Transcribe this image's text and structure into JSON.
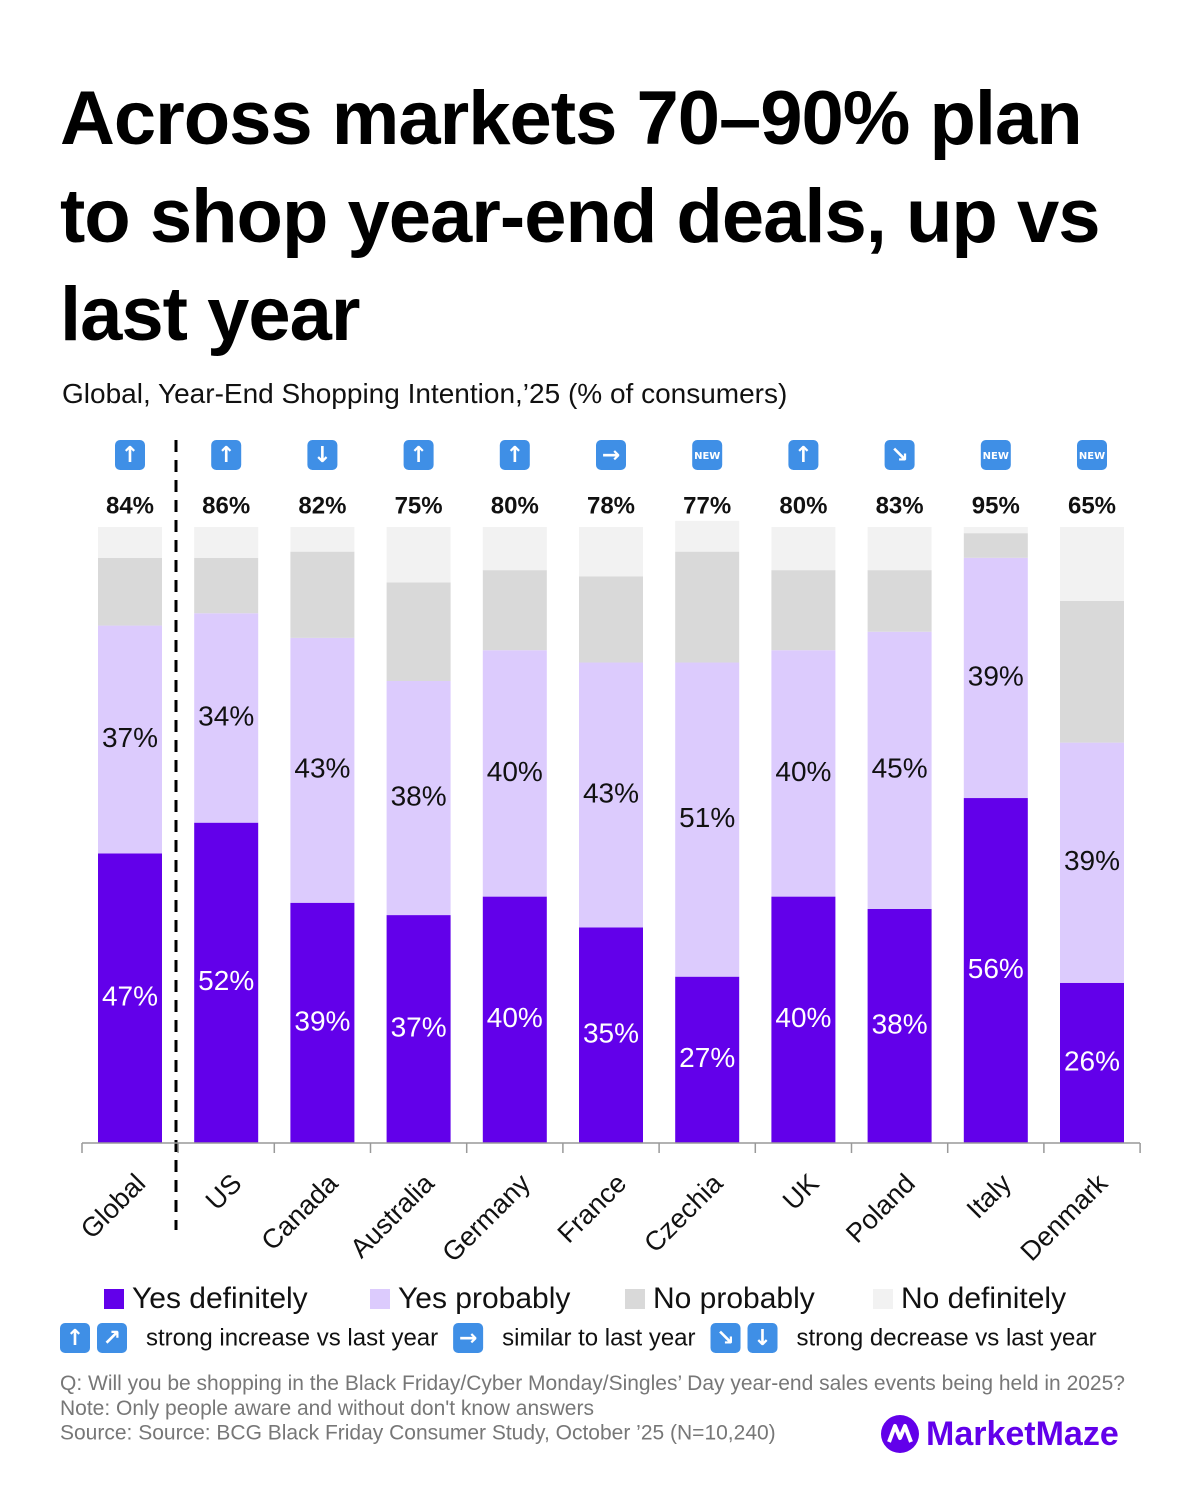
{
  "chart_data": {
    "type": "stacked-bar",
    "title": "Across markets 70–90% plan to shop year-end deals, up vs last year",
    "subtitle": "Global, Year-End Shopping Intention,’25 (% of consumers)",
    "categories": [
      "Global",
      "US",
      "Canada",
      "Australia",
      "Germany",
      "France",
      "Czechia",
      "UK",
      "Poland",
      "Italy",
      "Denmark"
    ],
    "ylim": [
      0,
      100
    ],
    "series": [
      {
        "name": "Yes definitely",
        "color": "#6200ea",
        "label_color": "#ffffff",
        "values": [
          47,
          52,
          39,
          37,
          40,
          35,
          27,
          40,
          38,
          56,
          26
        ],
        "value_labels": [
          "47%",
          "52%",
          "39%",
          "37%",
          "40%",
          "35%",
          "27%",
          "40%",
          "38%",
          "56%",
          "26%"
        ]
      },
      {
        "name": "Yes probably",
        "color": "#dccbfd",
        "label_color": "#111111",
        "values": [
          37,
          34,
          43,
          38,
          40,
          43,
          51,
          40,
          45,
          39,
          39
        ],
        "value_labels": [
          "37%",
          "34%",
          "43%",
          "38%",
          "40%",
          "43%",
          "51%",
          "40%",
          "45%",
          "39%",
          "39%"
        ]
      },
      {
        "name": "No probably",
        "color": "#d9d9d9",
        "values": [
          11,
          9,
          14,
          16,
          13,
          14,
          18,
          13,
          10,
          4,
          23
        ]
      },
      {
        "name": "No definitely",
        "color": "#f2f2f2",
        "values": [
          5,
          5,
          4,
          9,
          7,
          8,
          5,
          7,
          7,
          1,
          12
        ]
      }
    ],
    "totals": {
      "values": [
        84,
        86,
        82,
        75,
        80,
        78,
        77,
        80,
        83,
        95,
        65
      ],
      "value_labels": [
        "84%",
        "86%",
        "82%",
        "75%",
        "80%",
        "78%",
        "77%",
        "80%",
        "83%",
        "95%",
        "65%"
      ]
    },
    "trends": [
      "↑",
      "↑",
      "↓",
      "↑",
      "↑",
      "→",
      "NEW",
      "↑",
      "↘",
      "NEW",
      "NEW"
    ],
    "trend_legend": [
      {
        "icons": [
          "↑",
          "↗"
        ],
        "text": "strong increase vs last year"
      },
      {
        "icons": [
          "→"
        ],
        "text": "similar to last year"
      },
      {
        "icons": [
          "↘",
          "↓"
        ],
        "text": "strong decrease vs last year"
      }
    ],
    "note": "Q: Will you be shopping in the Black Friday/Cyber Monday/Singles’ Day year-end sales events being held in 2025? Note: Only people aware and without don't know answers",
    "source": "Source: Source: BCG Black Friday Consumer Study, October ’25 (N=10,240)",
    "brand": "MarketMaze"
  }
}
